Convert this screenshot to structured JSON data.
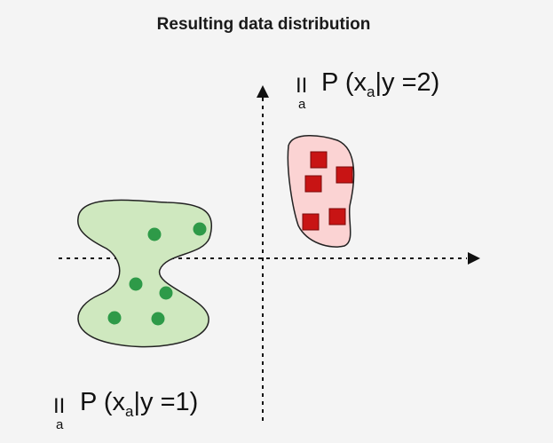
{
  "title": "Resulting data distribution",
  "product_symbol": "II",
  "product_index": "a",
  "class2_label": {
    "prefix": "P (x",
    "sub": "a",
    "suffix": "|y =2)"
  },
  "class1_label": {
    "prefix": "P (x",
    "sub": "a",
    "suffix": "|y =1)"
  },
  "colors": {
    "green_region_fill": "#cfe8bf",
    "green_point": "#2e9a48",
    "red_region_fill": "#fbd3d3",
    "red_point": "#c81414",
    "outline": "#222222",
    "axis": "#111111"
  },
  "class1_points": 6,
  "class2_points": 5
}
